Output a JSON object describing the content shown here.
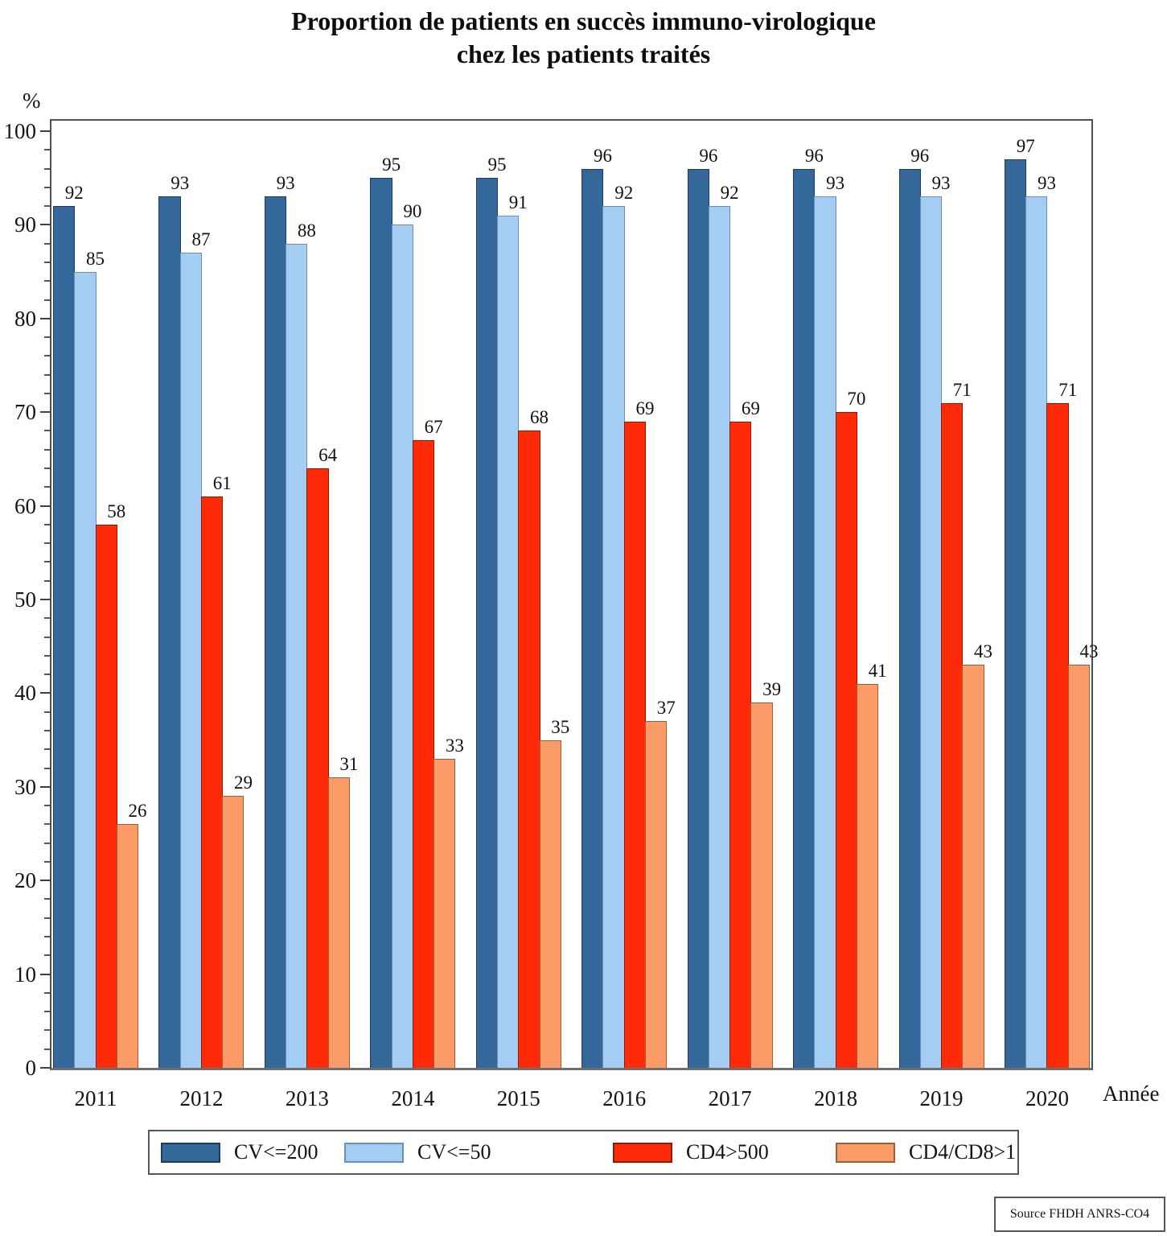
{
  "title": {
    "line1": "Proportion de patients en succès immuno-virologique",
    "line2": "chez les patients traités"
  },
  "source_note": "Source FHDH ANRS-CO4",
  "chart_data": {
    "type": "bar",
    "title": "Proportion de patients en succès immuno-virologique chez les patients traités",
    "ylabel": "%",
    "xlabel": "Année",
    "ylim": [
      0,
      100
    ],
    "y_major_step": 10,
    "y_minor_step": 2,
    "grid": false,
    "legend_position": "bottom",
    "categories": [
      "2011",
      "2012",
      "2013",
      "2014",
      "2015",
      "2016",
      "2017",
      "2018",
      "2019",
      "2020"
    ],
    "series": [
      {
        "name": "CV<=200",
        "color": "#34679A",
        "border_color": "#1d3c5e",
        "values": [
          92,
          93,
          93,
          95,
          95,
          96,
          96,
          96,
          96,
          97
        ]
      },
      {
        "name": "CV<=50",
        "color": "#A4CDF4",
        "border_color": "#6f8fae",
        "values": [
          85,
          87,
          88,
          90,
          91,
          92,
          92,
          93,
          93,
          93
        ]
      },
      {
        "name": "CD4>500",
        "color": "#FF2A08",
        "border_color": "#8a1d00",
        "values": [
          58,
          61,
          64,
          67,
          68,
          69,
          69,
          70,
          71,
          71
        ]
      },
      {
        "name": "CD4/CD8>1",
        "color": "#FB9C68",
        "border_color": "#9c5f35",
        "values": [
          26,
          29,
          31,
          33,
          35,
          37,
          39,
          41,
          43,
          43
        ]
      }
    ]
  }
}
